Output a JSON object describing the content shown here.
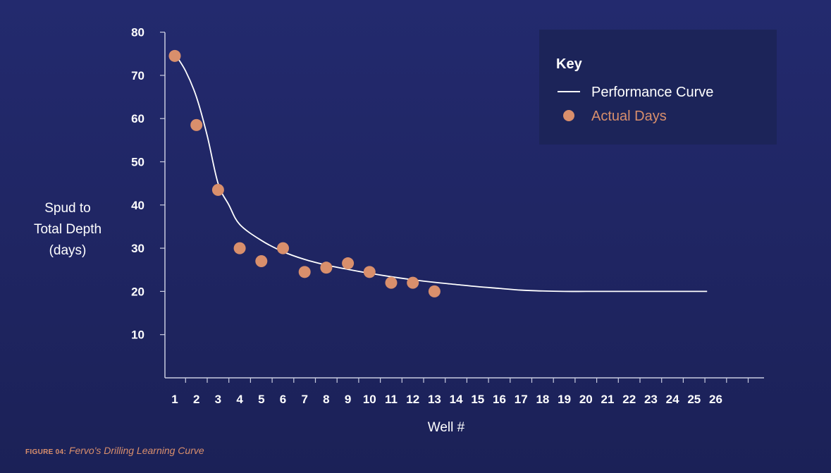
{
  "chart_data": {
    "type": "scatter",
    "title": "Fervo's Drilling Learning Curve",
    "xlabel": "Well #",
    "ylabel_lines": [
      "Spud to",
      "Total Depth",
      "(days)"
    ],
    "x_ticks": [
      1,
      2,
      3,
      4,
      5,
      6,
      7,
      8,
      9,
      10,
      11,
      12,
      13,
      14,
      15,
      16,
      17,
      18,
      19,
      20,
      21,
      22,
      23,
      24,
      25,
      26
    ],
    "y_ticks": [
      10,
      20,
      30,
      40,
      50,
      60,
      70,
      80
    ],
    "xlim": [
      0.5,
      28
    ],
    "ylim": [
      0,
      80
    ],
    "series": [
      {
        "name": "Performance Curve",
        "kind": "line",
        "color": "#ffffff",
        "x": [
          1,
          1.5,
          2,
          2.5,
          3,
          3.5,
          4,
          5,
          6,
          7,
          8,
          9,
          10,
          11,
          12,
          13,
          14,
          15,
          16,
          17,
          18,
          19,
          20,
          21,
          22,
          23,
          24,
          25,
          25.6
        ],
        "y": [
          75,
          71,
          65,
          56,
          45,
          40,
          35.5,
          31.8,
          29.2,
          27.4,
          26.1,
          25.1,
          24.2,
          23.4,
          22.7,
          22.1,
          21.6,
          21.1,
          20.7,
          20.3,
          20.1,
          20.0,
          20.0,
          20.0,
          20.0,
          20.0,
          20.0,
          20.0,
          20.0
        ]
      },
      {
        "name": "Actual Days",
        "kind": "scatter",
        "color": "#d98f6c",
        "x": [
          1,
          2,
          3,
          4,
          5,
          6,
          7,
          8,
          9,
          10,
          11,
          12,
          13
        ],
        "y": [
          74.5,
          58.5,
          43.5,
          30,
          27,
          30,
          24.5,
          25.5,
          26.5,
          24.5,
          22,
          22,
          20
        ]
      }
    ],
    "legend": {
      "title": "Key",
      "position": "top-right",
      "background": "#1c2459"
    }
  },
  "caption": {
    "label": "FIGURE 04:",
    "text": " Fervo's Drilling Learning Curve"
  },
  "colors": {
    "axis": "#c9cce0",
    "accent": "#d98f6c"
  }
}
